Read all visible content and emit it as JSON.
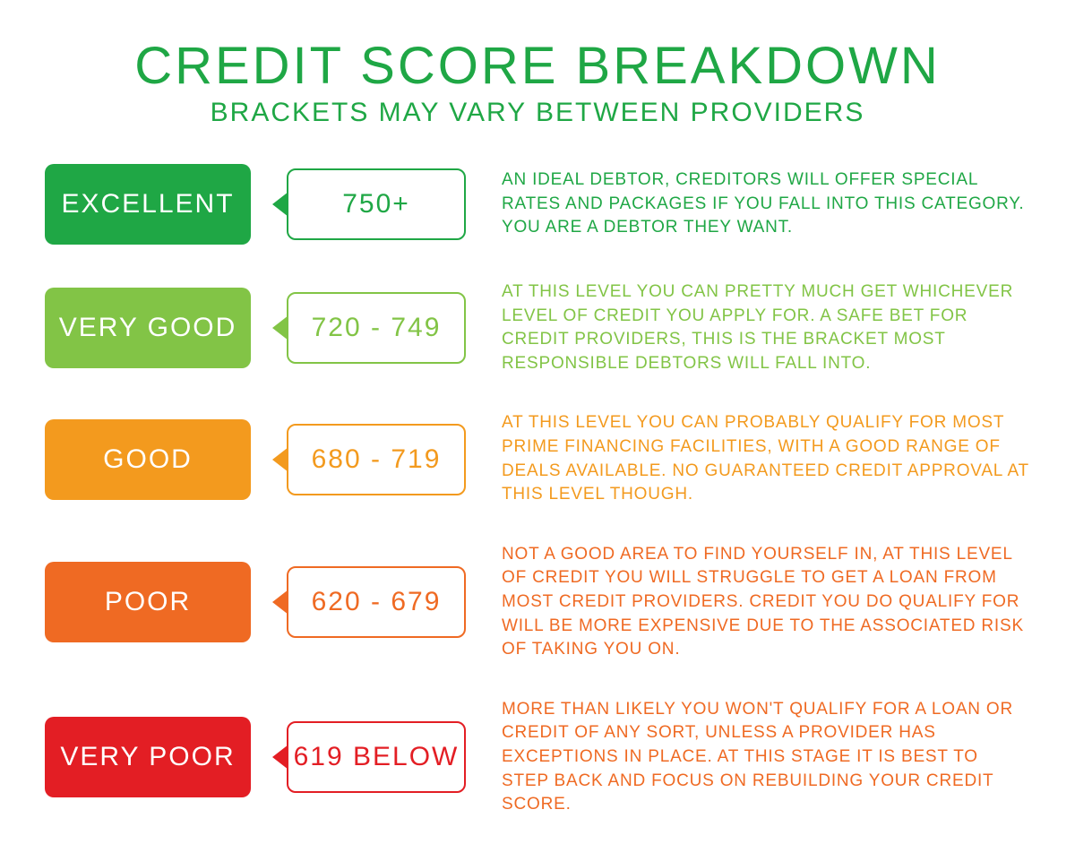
{
  "header": {
    "title": "CREDIT SCORE BREAKDOWN",
    "subtitle": "BRACKETS MAY VARY BETWEEN PROVIDERS",
    "title_color": "#1fa745",
    "subtitle_color": "#1fa745"
  },
  "typography": {
    "title_fontsize": 58,
    "subtitle_fontsize": 30,
    "badge_fontsize": 30,
    "range_fontsize": 30,
    "desc_fontsize": 19
  },
  "layout": {
    "row_gap": 40,
    "badge_width": 230,
    "badge_height": 90,
    "range_width": 200,
    "range_height": 80,
    "border_radius": 10
  },
  "rows": [
    {
      "label": "EXCELLENT",
      "range": "750+",
      "desc": "AN IDEAL DEBTOR, CREDITORS WILL OFFER SPECIAL RATES AND PACKAGES IF YOU FALL INTO THIS CATEGORY. YOU ARE A DEBTOR THEY WANT.",
      "badge_color": "#1fa745",
      "text_color": "#1fa745"
    },
    {
      "label": "VERY GOOD",
      "range": "720 - 749",
      "desc": "AT THIS LEVEL YOU CAN PRETTY MUCH GET WHICHEVER LEVEL OF CREDIT YOU APPLY FOR. A SAFE BET FOR CREDIT PROVIDERS, THIS IS THE BRACKET MOST RESPONSIBLE DEBTORS WILL FALL INTO.",
      "badge_color": "#82c446",
      "text_color": "#82c446"
    },
    {
      "label": "GOOD",
      "range": "680 - 719",
      "desc": "AT THIS LEVEL YOU CAN PROBABLY QUALIFY FOR MOST PRIME FINANCING FACILITIES, WITH A GOOD RANGE OF DEALS AVAILABLE. NO GUARANTEED CREDIT APPROVAL AT THIS LEVEL THOUGH.",
      "badge_color": "#f39a1e",
      "text_color": "#f39a1e"
    },
    {
      "label": "POOR",
      "range": "620 - 679",
      "desc": "NOT A GOOD AREA TO FIND YOURSELF IN, AT THIS LEVEL OF CREDIT YOU WILL STRUGGLE TO GET A LOAN FROM MOST CREDIT PROVIDERS. CREDIT YOU DO QUALIFY FOR WILL BE MORE EXPENSIVE DUE TO THE ASSOCIATED RISK OF TAKING YOU ON.",
      "badge_color": "#ef6a23",
      "text_color": "#ef6a23"
    },
    {
      "label": "VERY POOR",
      "range": "619 BELOW",
      "desc": "MORE THAN LIKELY YOU WON'T QUALIFY FOR A LOAN OR CREDIT OF ANY SORT, UNLESS A PROVIDER HAS EXCEPTIONS IN PLACE. AT THIS STAGE IT IS BEST TO STEP BACK AND FOCUS ON REBUILDING YOUR CREDIT SCORE.",
      "badge_color": "#e31e24",
      "text_color": "#ef6a23"
    }
  ]
}
